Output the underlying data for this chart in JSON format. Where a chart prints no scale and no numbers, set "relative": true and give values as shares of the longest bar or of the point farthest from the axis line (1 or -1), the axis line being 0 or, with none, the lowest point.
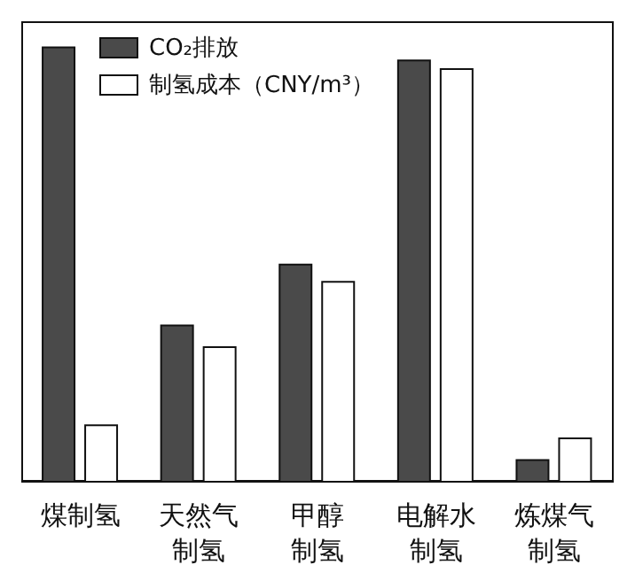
{
  "chart_data": {
    "type": "bar",
    "relative": true,
    "categories": [
      "煤制氢",
      "天然气制氢",
      "甲醇制氢",
      "电解水制氢",
      "炼煤气制氢"
    ],
    "series": [
      {
        "name": "CO₂排放",
        "color": "#4a4a4a",
        "values": [
          1,
          0.36,
          0.5,
          0.97,
          0.05
        ]
      },
      {
        "name": "制氢成本（CNY/m³）",
        "color": "#ffffff",
        "values": [
          0.13,
          0.31,
          0.46,
          0.95,
          0.1
        ]
      }
    ],
    "legend": "top left",
    "grid": false
  }
}
